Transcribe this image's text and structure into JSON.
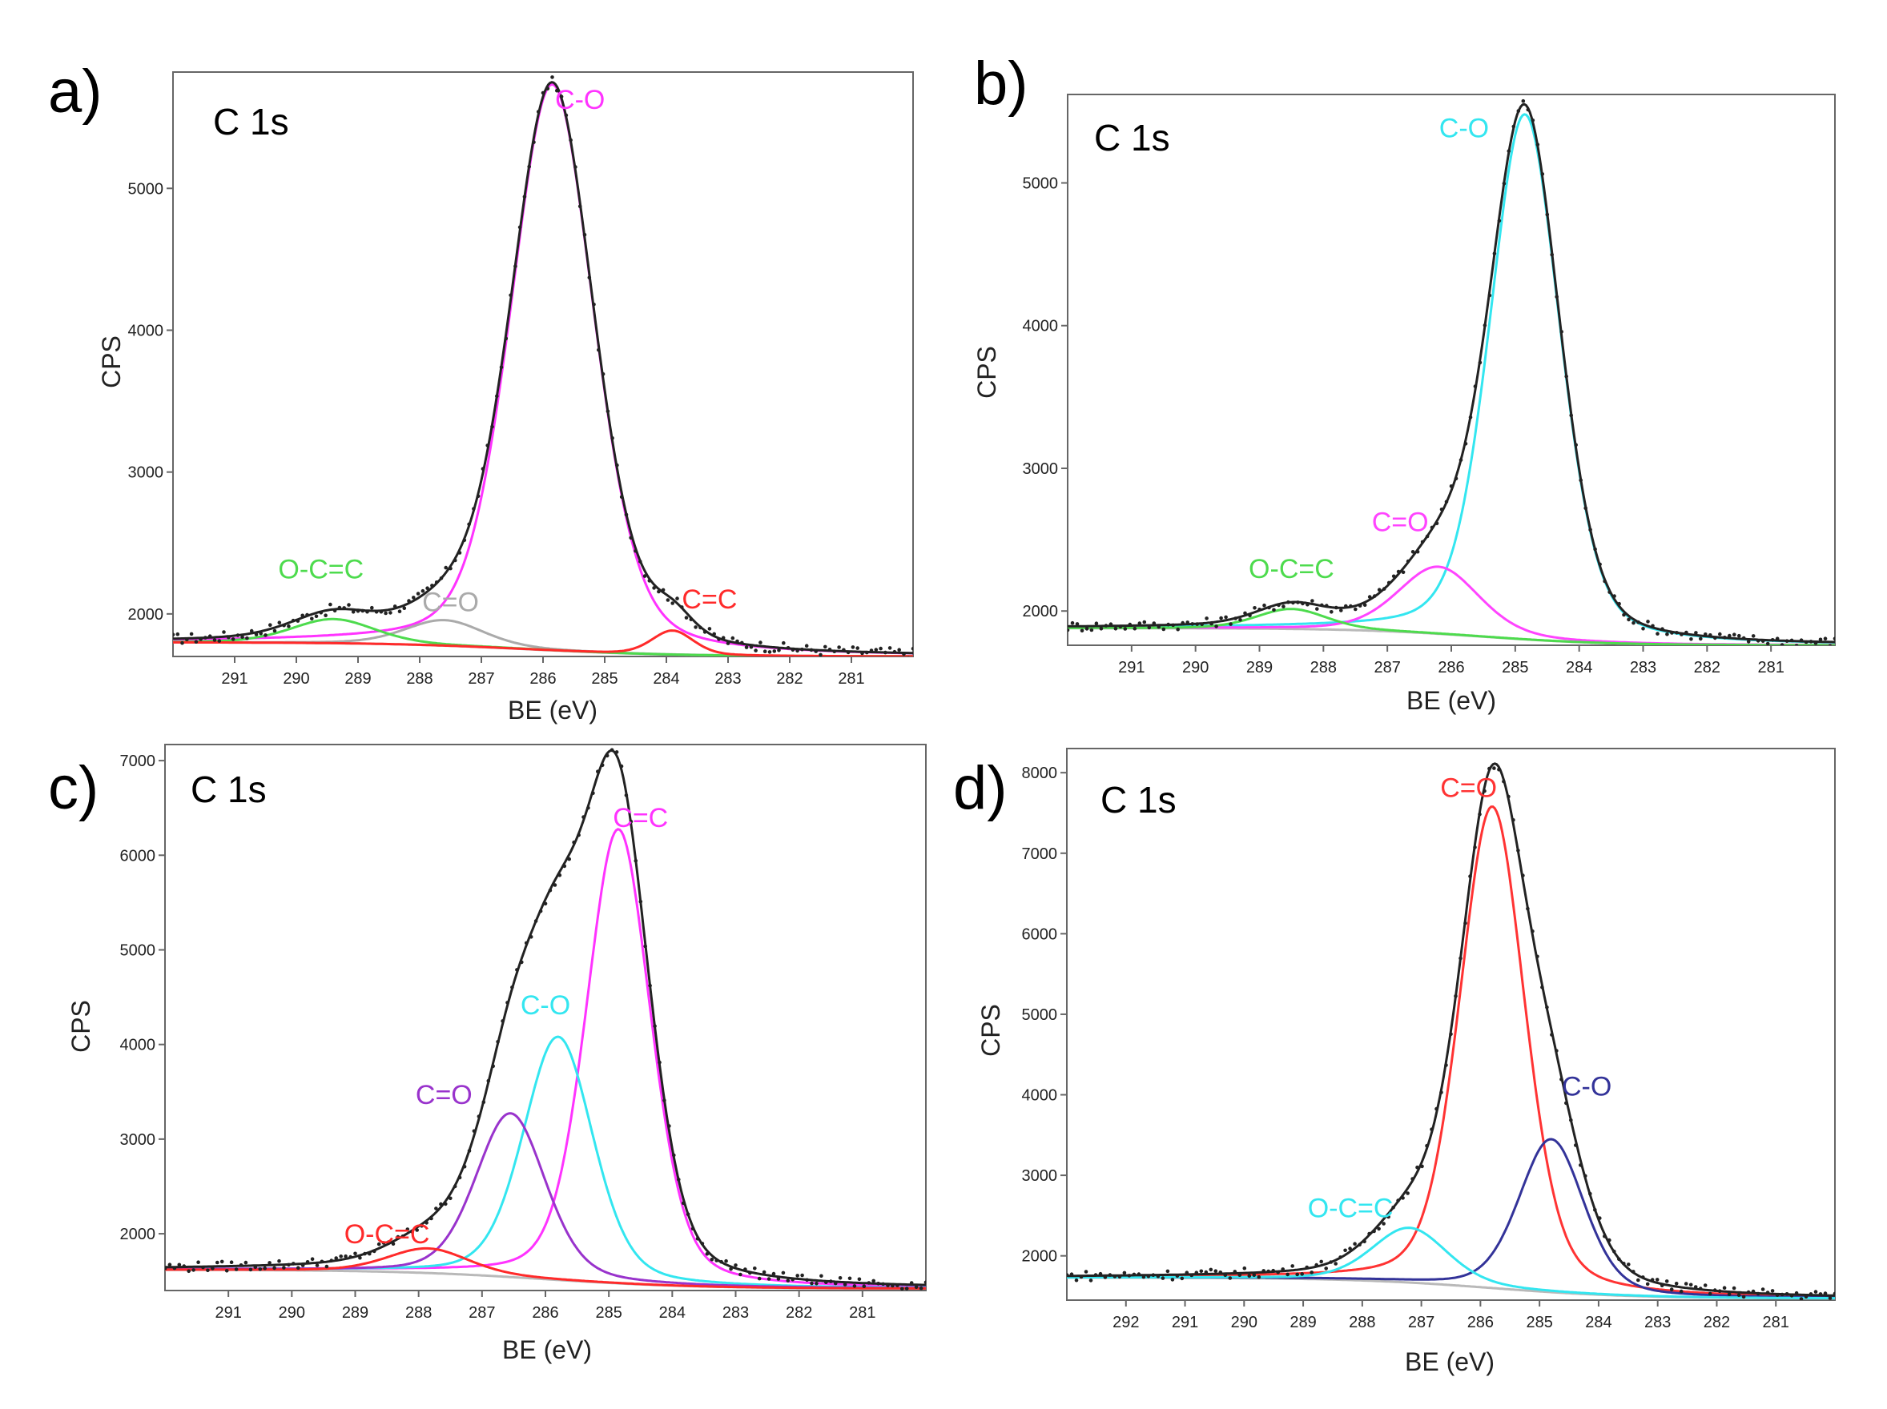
{
  "chart_data": [
    {
      "type": "line",
      "panel_label": "a)",
      "core_level": "C 1s",
      "xlabel": "BE (eV)",
      "ylabel": "CPS",
      "xlim": [
        292,
        280
      ],
      "ylim": [
        1700,
        5820
      ],
      "x_ticks": [
        291,
        290,
        289,
        288,
        287,
        286,
        285,
        284,
        283,
        282,
        281
      ],
      "y_ticks": [
        2000,
        3000,
        4000,
        5000
      ],
      "background": {
        "color": "#b9b9b9",
        "left": 1800,
        "right": 1700,
        "center": 286.2,
        "width": 1.2
      },
      "envelope_color": "#222222",
      "components": [
        {
          "name": "C-O",
          "center": 285.85,
          "amplitude": 3990,
          "fwhm": 1.6,
          "color": "#ff33ff",
          "label_x": 285.4,
          "label_y": 5560
        },
        {
          "name": "C=O",
          "center": 287.6,
          "amplitude": 180,
          "fwhm": 1.5,
          "color": "#aaaaaa",
          "label_x": 287.5,
          "label_y": 2020
        },
        {
          "name": "O-C=C",
          "center": 289.4,
          "amplitude": 170,
          "fwhm": 1.6,
          "color": "#4ddb4d",
          "label_x": 289.6,
          "label_y": 2250
        },
        {
          "name": "C=C",
          "center": 283.9,
          "amplitude": 170,
          "fwhm": 0.8,
          "color": "#ff2a2a",
          "label_x": 283.3,
          "label_y": 2040
        }
      ]
    },
    {
      "type": "line",
      "panel_label": "b)",
      "core_level": "C 1s",
      "xlabel": "BE (eV)",
      "ylabel": "CPS",
      "xlim": [
        292,
        280
      ],
      "ylim": [
        1760,
        5620
      ],
      "x_ticks": [
        291,
        290,
        289,
        288,
        287,
        286,
        285,
        284,
        283,
        282,
        281
      ],
      "y_ticks": [
        2000,
        3000,
        4000,
        5000
      ],
      "background": {
        "color": "#b9b9b9",
        "left": 1880,
        "right": 1760,
        "center": 285.5,
        "width": 1.0
      },
      "envelope_color": "#222222",
      "components": [
        {
          "name": "C-O",
          "center": 284.85,
          "amplitude": 3680,
          "fwhm": 1.3,
          "color": "#33e6f0",
          "label_x": 285.8,
          "label_y": 5320
        },
        {
          "name": "C=O",
          "center": 286.2,
          "amplitude": 470,
          "fwhm": 1.5,
          "color": "#ff44ff",
          "label_x": 286.8,
          "label_y": 2560
        },
        {
          "name": "O-C=C",
          "center": 288.5,
          "amplitude": 140,
          "fwhm": 1.3,
          "color": "#4ddb4d",
          "label_x": 288.5,
          "label_y": 2230
        }
      ]
    },
    {
      "type": "line",
      "panel_label": "c)",
      "core_level": "C 1s",
      "xlabel": "BE (eV)",
      "ylabel": "CPS",
      "xlim": [
        292,
        280
      ],
      "ylim": [
        1400,
        7170
      ],
      "x_ticks": [
        291,
        290,
        289,
        288,
        287,
        286,
        285,
        284,
        283,
        282,
        281
      ],
      "y_ticks": [
        2000,
        3000,
        4000,
        5000,
        6000,
        7000
      ],
      "background": {
        "color": "#b9b9b9",
        "left": 1620,
        "right": 1420,
        "center": 286.0,
        "width": 1.2
      },
      "envelope_color": "#222222",
      "components": [
        {
          "name": "C=C",
          "center": 284.85,
          "amplitude": 4800,
          "fwhm": 1.2,
          "color": "#ff33ff",
          "label_x": 284.5,
          "label_y": 6300
        },
        {
          "name": "C-O",
          "center": 285.8,
          "amplitude": 2570,
          "fwhm": 1.3,
          "color": "#33e6f0",
          "label_x": 286.0,
          "label_y": 4320
        },
        {
          "name": "C=O",
          "center": 286.55,
          "amplitude": 1730,
          "fwhm": 1.3,
          "color": "#9933cc",
          "label_x": 287.6,
          "label_y": 3370
        },
        {
          "name": "O-C=C",
          "center": 287.85,
          "amplitude": 260,
          "fwhm": 1.5,
          "color": "#ff2a2a",
          "label_x": 288.5,
          "label_y": 1900
        }
      ]
    },
    {
      "type": "line",
      "panel_label": "d)",
      "core_level": "C 1s",
      "xlabel": "BE (eV)",
      "ylabel": "CPS",
      "xlim": [
        293,
        280
      ],
      "ylim": [
        1450,
        8300
      ],
      "x_ticks": [
        292,
        291,
        290,
        289,
        288,
        287,
        286,
        285,
        284,
        283,
        282,
        281
      ],
      "y_ticks": [
        2000,
        3000,
        4000,
        5000,
        6000,
        7000,
        8000
      ],
      "background": {
        "color": "#b9b9b9",
        "left": 1730,
        "right": 1470,
        "center": 285.8,
        "width": 1.2
      },
      "envelope_color": "#222222",
      "components": [
        {
          "name": "C=O",
          "center": 285.8,
          "amplitude": 5980,
          "fwhm": 1.3,
          "color": "#ff3333",
          "label_x": 286.2,
          "label_y": 7700
        },
        {
          "name": "C-O",
          "center": 284.8,
          "amplitude": 1900,
          "fwhm": 1.3,
          "color": "#333399",
          "label_x": 284.2,
          "label_y": 3990
        },
        {
          "name": "O-C=C",
          "center": 287.2,
          "amplitude": 680,
          "fwhm": 1.5,
          "color": "#33e6f0",
          "label_x": 288.2,
          "label_y": 2480
        }
      ]
    }
  ]
}
